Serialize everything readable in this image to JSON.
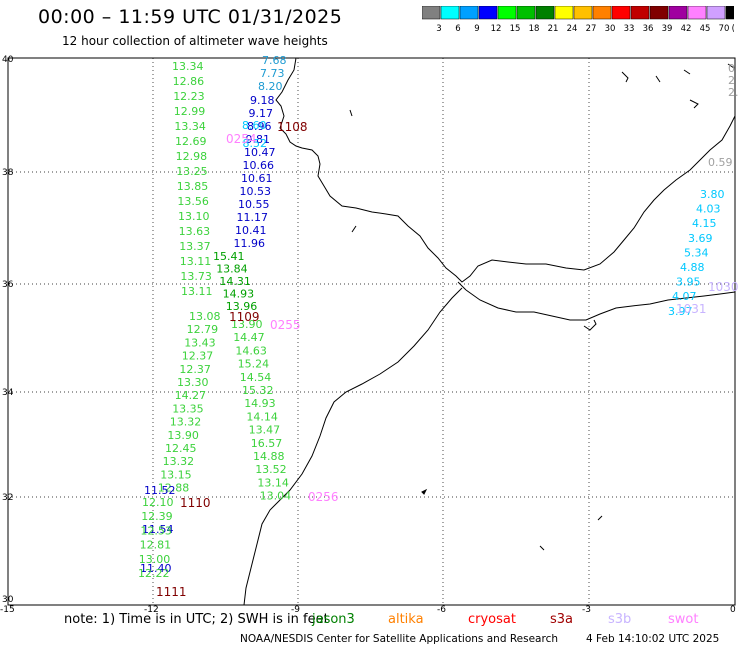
{
  "header": {
    "title": "00:00 – 11:59 UTC 01/31/2025",
    "subtitle": "12 hour collection of altimeter wave heights"
  },
  "colorbar": {
    "labels": [
      "3",
      "6",
      "9",
      "12",
      "15",
      "18",
      "21",
      "24",
      "27",
      "30",
      "33",
      "36",
      "39",
      "42",
      "45",
      "70",
      "(ft)"
    ],
    "colors": [
      "#808080",
      "#00ffff",
      "#00a0ff",
      "#0000ff",
      "#00ff00",
      "#00c000",
      "#008000",
      "#ffff00",
      "#ffc000",
      "#ff8000",
      "#ff0000",
      "#c00000",
      "#800000",
      "#a000a0",
      "#ff80ff",
      "#d0a0ff",
      "#000000"
    ]
  },
  "axes": {
    "lat_labels": [
      "40",
      "38",
      "36",
      "34",
      "32",
      "30"
    ],
    "lon_labels": [
      "-15",
      "-12",
      "-9",
      "-6",
      "-3",
      "0"
    ]
  },
  "tracks": [
    {
      "color": "#3cd23c",
      "values": [
        "13.34",
        "12.86",
        "12.23",
        "12.99",
        "13.34",
        "12.69",
        "12.98",
        "13.25",
        "13.85",
        "13.56",
        "13.10",
        "13.63",
        "13.37",
        "13.11",
        "13.73",
        "13.11"
      ]
    },
    {
      "color": "#1e9bd2",
      "values": [
        "7.68",
        "7.73",
        "8.20"
      ]
    },
    {
      "color": "#0000c8",
      "values": [
        "9.18",
        "9.17",
        "8.96",
        "9.81",
        "10.47",
        "10.66",
        "10.61",
        "10.53",
        "10.55",
        "11.17",
        "10.41",
        "11.96"
      ]
    },
    {
      "color": "#00c8ff",
      "values": [
        "8.60",
        "8.52"
      ]
    },
    {
      "color": "#00a000",
      "values": [
        "15.41",
        "13.84",
        "14.31",
        "14.93",
        "13.96"
      ]
    },
    {
      "color": "#3cd23c",
      "values": [
        "13.08",
        "12.79",
        "13.43",
        "12.37",
        "12.37",
        "13.30",
        "14.27",
        "13.35",
        "13.32",
        "13.90",
        "12.45",
        "13.32",
        "13.15",
        "12.88"
      ]
    },
    {
      "color": "#3cd23c",
      "values": [
        "13.90",
        "14.47",
        "14.63",
        "15.24",
        "14.54",
        "15.32",
        "14.93",
        "14.14",
        "13.47",
        "16.57",
        "14.88",
        "13.52",
        "13.14",
        "13.04"
      ]
    },
    {
      "color": "#0000c8",
      "values": [
        "11.52",
        "11.54",
        "11.40"
      ]
    },
    {
      "color": "#3cd23c",
      "values": [
        "12.10",
        "12.39",
        "12.53",
        "12.81",
        "13.00",
        "12.22"
      ]
    },
    {
      "color": "#00c8ff",
      "values": [
        "3.80",
        "4.03",
        "4.15",
        "3.69",
        "5.34",
        "4.88",
        "3.95",
        "4.07",
        "3.97"
      ]
    },
    {
      "color": "#a0a0a0",
      "values": [
        "0",
        "2",
        "2.",
        "0.59"
      ]
    }
  ],
  "time_labels": [
    {
      "text": "1108",
      "color": "#800000"
    },
    {
      "text": "0254",
      "color": "#ff80ff"
    },
    {
      "text": "1109",
      "color": "#800000"
    },
    {
      "text": "0255",
      "color": "#ff80ff"
    },
    {
      "text": "1110",
      "color": "#800000"
    },
    {
      "text": "0256",
      "color": "#ff80ff"
    },
    {
      "text": "1111",
      "color": "#800000"
    },
    {
      "text": "1030",
      "color": "#c8b4ff"
    },
    {
      "text": "1031",
      "color": "#c8b4ff"
    }
  ],
  "footer": {
    "note": "note: 1) Time is in UTC; 2) SWH is in feet",
    "missions": [
      {
        "name": "jason3",
        "color": "#008000"
      },
      {
        "name": "altika",
        "color": "#ff8000"
      },
      {
        "name": "cryosat",
        "color": "#ff0000"
      },
      {
        "name": "s3a",
        "color": "#a00000"
      },
      {
        "name": "s3b",
        "color": "#c8b4ff"
      },
      {
        "name": "swot",
        "color": "#ff80ff"
      }
    ],
    "credit": "NOAA/NESDIS Center for Satellite Applications and Research",
    "timestamp": "4 Feb 14:10:02 UTC 2025"
  }
}
